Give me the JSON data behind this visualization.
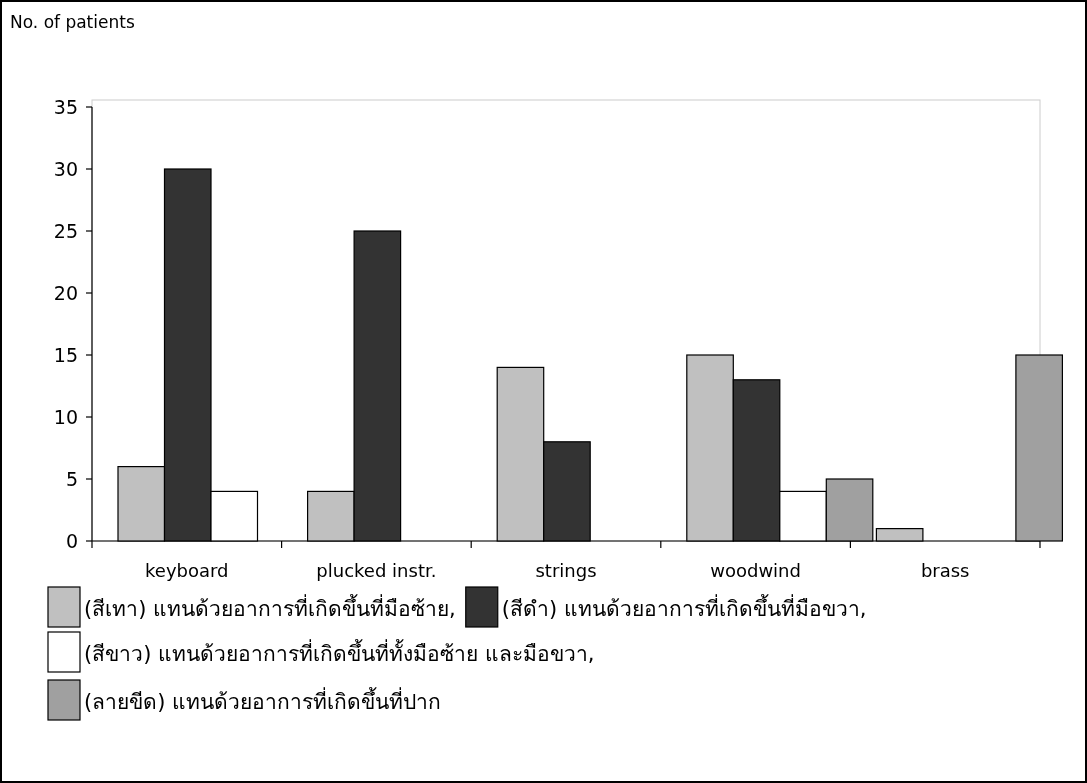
{
  "chart_data": {
    "type": "bar",
    "ylabel": "No. of patients",
    "categories": [
      "keyboard",
      "plucked instr.",
      "strings",
      "woodwind",
      "brass"
    ],
    "series": [
      {
        "name": "(สีเทา) แทนด้วยอาการที่เกิดขึ้นที่มือซ้าย,",
        "color": "#c0c0c0",
        "values": [
          6,
          4,
          14,
          15,
          1
        ]
      },
      {
        "name": "(สีดำ) แทนด้วยอาการที่เกิดขึ้นที่มือขวา,",
        "color": "#333333",
        "values": [
          30,
          25,
          8,
          13,
          null
        ]
      },
      {
        "name": "(สีขาว) แทนด้วยอาการที่เกิดขึ้นที่ทั้งมือซ้าย และมือขวา,",
        "color": "#ffffff",
        "values": [
          4,
          null,
          null,
          4,
          null
        ]
      },
      {
        "name": "(ลายขีด) แทนด้วยอาการที่เกิดขึ้นที่ปาก",
        "color": "#a0a0a0",
        "values": [
          null,
          null,
          null,
          5,
          15
        ]
      }
    ],
    "ylim": [
      0,
      35
    ],
    "yticks": [
      0,
      5,
      10,
      15,
      20,
      25,
      30,
      35
    ],
    "grid": false,
    "legend": "bottom"
  }
}
